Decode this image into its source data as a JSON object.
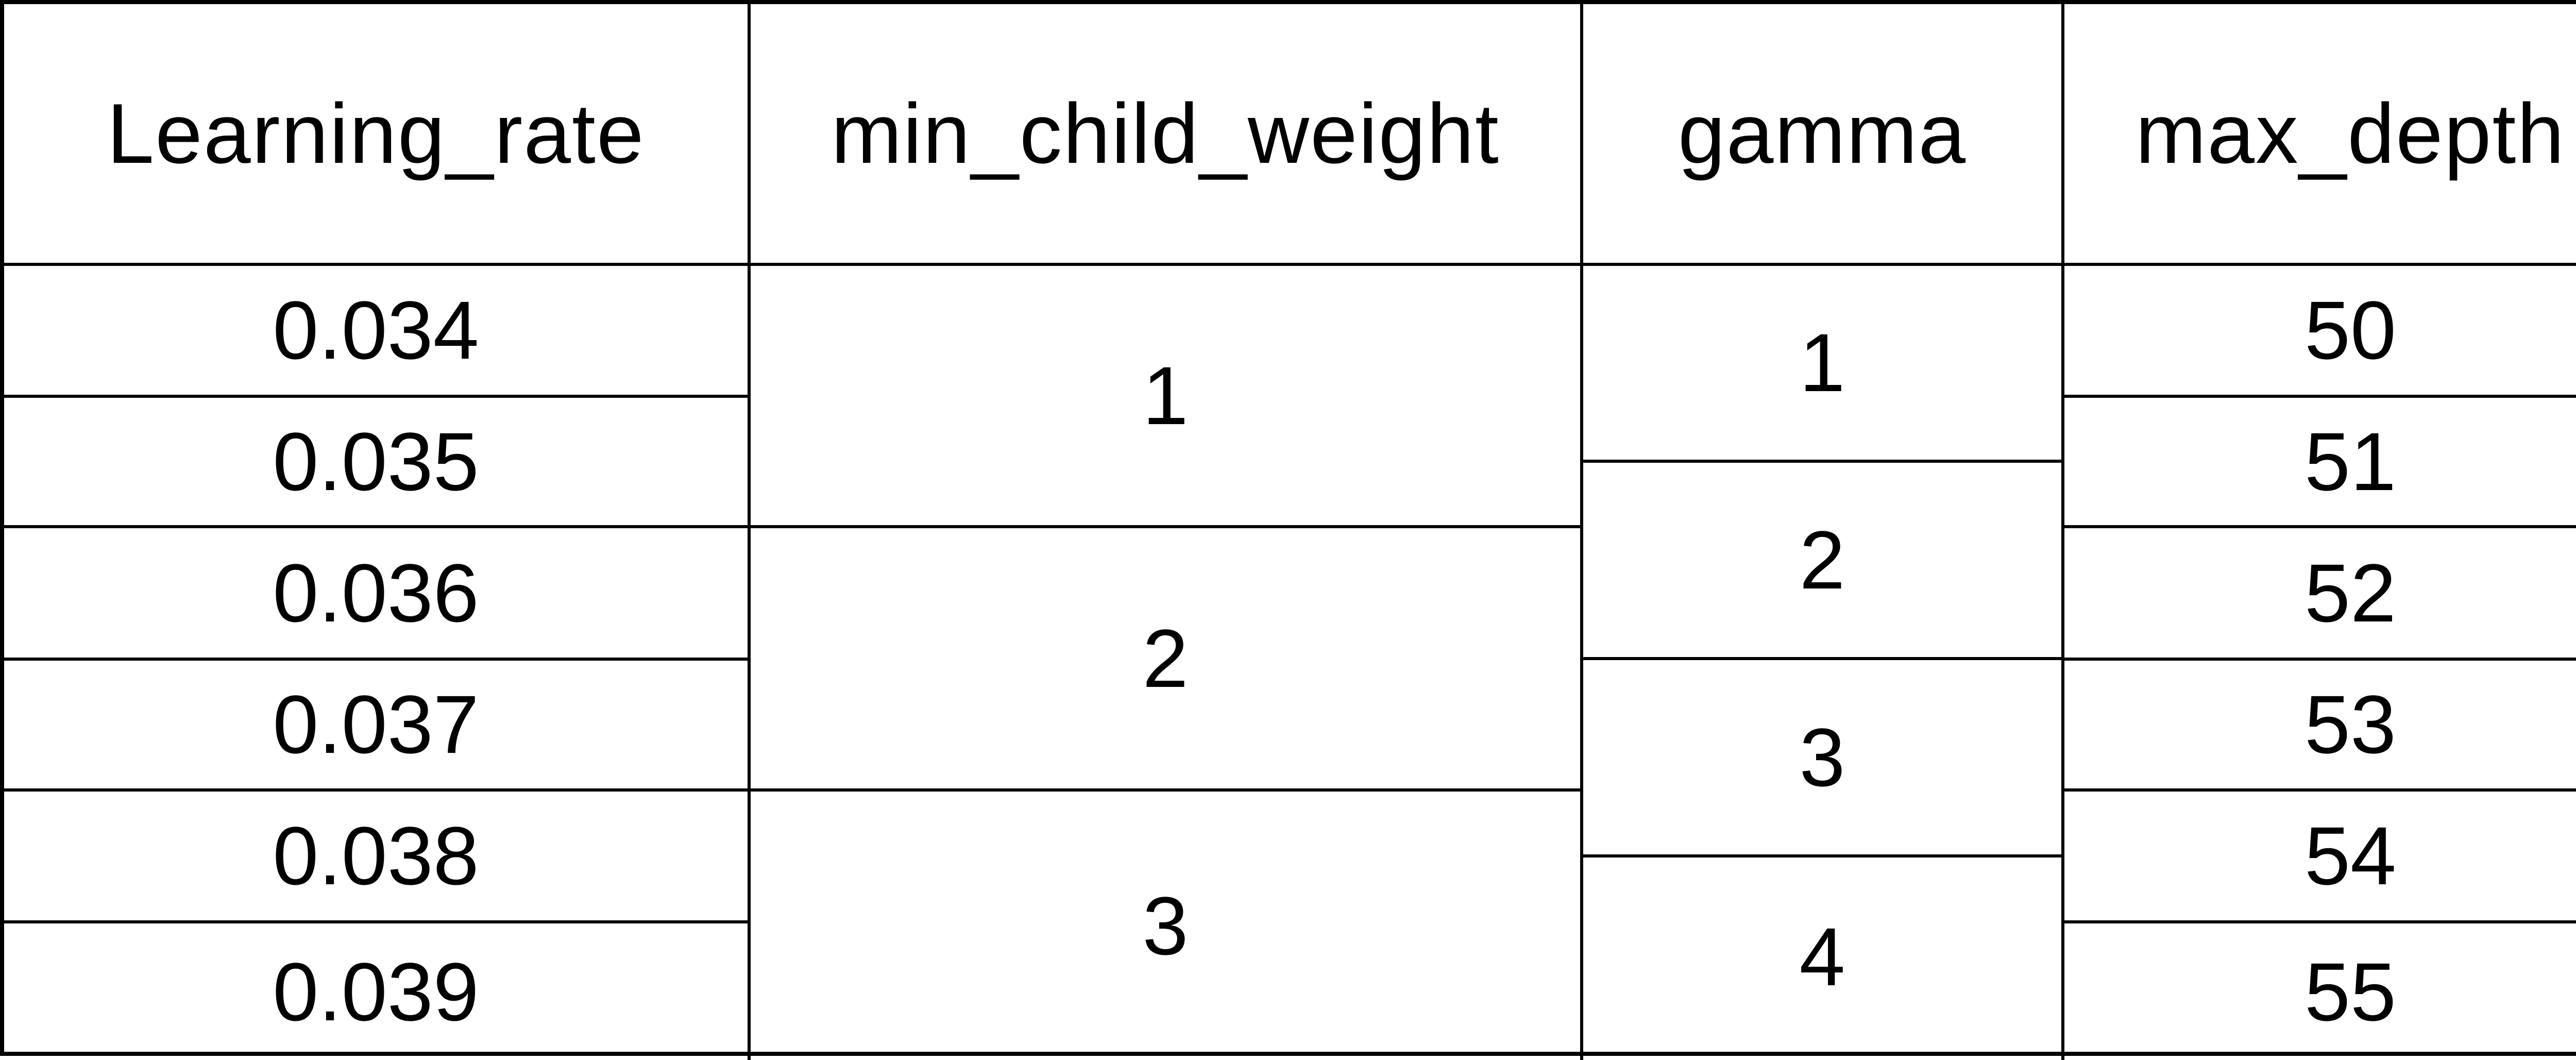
{
  "table": {
    "headers": [
      "Learning_rate",
      "min_child_weight",
      "gamma",
      "max_depth"
    ],
    "learning_rate": [
      "0.034",
      "0.035",
      "0.036",
      "0.037",
      "0.038",
      "0.039"
    ],
    "min_child_weight": [
      "1",
      "2",
      "3"
    ],
    "gamma": [
      "1",
      "2",
      "3",
      "4"
    ],
    "max_depth": [
      "50",
      "51",
      "52",
      "53",
      "54",
      "55"
    ]
  }
}
